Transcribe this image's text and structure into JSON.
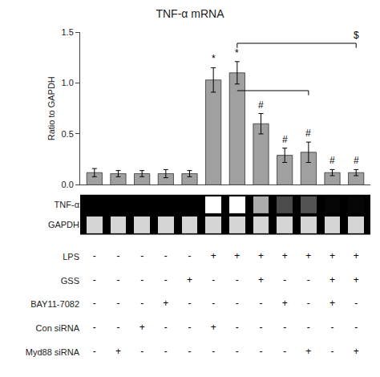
{
  "chart_data": [
    {
      "type": "bar",
      "title": "TNF-α mRNA",
      "y_label": "Ratio to GAPDH",
      "categories": [
        null,
        null,
        null,
        null,
        null,
        null,
        null,
        null,
        null,
        null,
        null,
        null
      ],
      "values": [
        0.12,
        0.11,
        0.11,
        0.11,
        0.11,
        1.03,
        1.1,
        0.6,
        0.29,
        0.32,
        0.12,
        0.12
      ],
      "errors": [
        0.04,
        0.03,
        0.03,
        0.04,
        0.03,
        0.12,
        0.11,
        0.1,
        0.07,
        0.1,
        0.03,
        0.03
      ],
      "color": "#a0a0a0",
      "ylim": [
        0,
        1.5
      ],
      "yticks": [
        {
          "value": 0,
          "label": "0.0"
        },
        0.5,
        {
          "value": 1,
          "label": "1.0"
        },
        1.5
      ],
      "grid": false,
      "tick_labels": "y",
      "annotations": [
        {
          "text": "*",
          "x": 5
        },
        {
          "text": "*",
          "x": 6
        },
        {
          "text": "#",
          "x": 7
        },
        {
          "text": "#",
          "x": 8
        },
        {
          "text": "#",
          "x": 9
        },
        {
          "text": "#",
          "x": 10
        },
        {
          "text": "#",
          "x": 11
        },
        {
          "text": "$",
          "x": 11,
          "span": [
            6,
            11
          ],
          "inner_span": [
            6,
            9
          ]
        }
      ]
    },
    {
      "type": "heatmap",
      "rows": [
        "TNF-α",
        "GAPDH"
      ],
      "cells": [
        [
          0.08,
          0.08,
          0.08,
          0.08,
          0.08,
          1.0,
          1.0,
          0.7,
          0.35,
          0.38,
          0.1,
          0.1
        ],
        [
          0.85,
          0.85,
          0.85,
          0.85,
          0.85,
          0.85,
          0.85,
          0.85,
          0.85,
          0.85,
          0.85,
          0.85
        ]
      ]
    },
    {
      "type": "table",
      "rows": [
        "LPS",
        "GSS",
        "BAY11-7082",
        "Con siRNA",
        "Myd88 siRNA"
      ],
      "cells": [
        [
          "-",
          "-",
          "-",
          "-",
          "-",
          "+",
          "+",
          "+",
          "+",
          "+",
          "+",
          "+"
        ],
        [
          "-",
          "-",
          "-",
          "-",
          "+",
          "-",
          "-",
          "+",
          "-",
          "-",
          "+",
          "+"
        ],
        [
          "-",
          "-",
          "-",
          "+",
          "-",
          "-",
          "-",
          "-",
          "+",
          "-",
          "+",
          "-"
        ],
        [
          "-",
          "-",
          "+",
          "-",
          "-",
          "+",
          "-",
          "-",
          "-",
          "-",
          "-",
          "-"
        ],
        [
          "-",
          "+",
          "-",
          "-",
          "-",
          "-",
          "-",
          "-",
          "-",
          "+",
          "-",
          "+"
        ]
      ]
    }
  ]
}
